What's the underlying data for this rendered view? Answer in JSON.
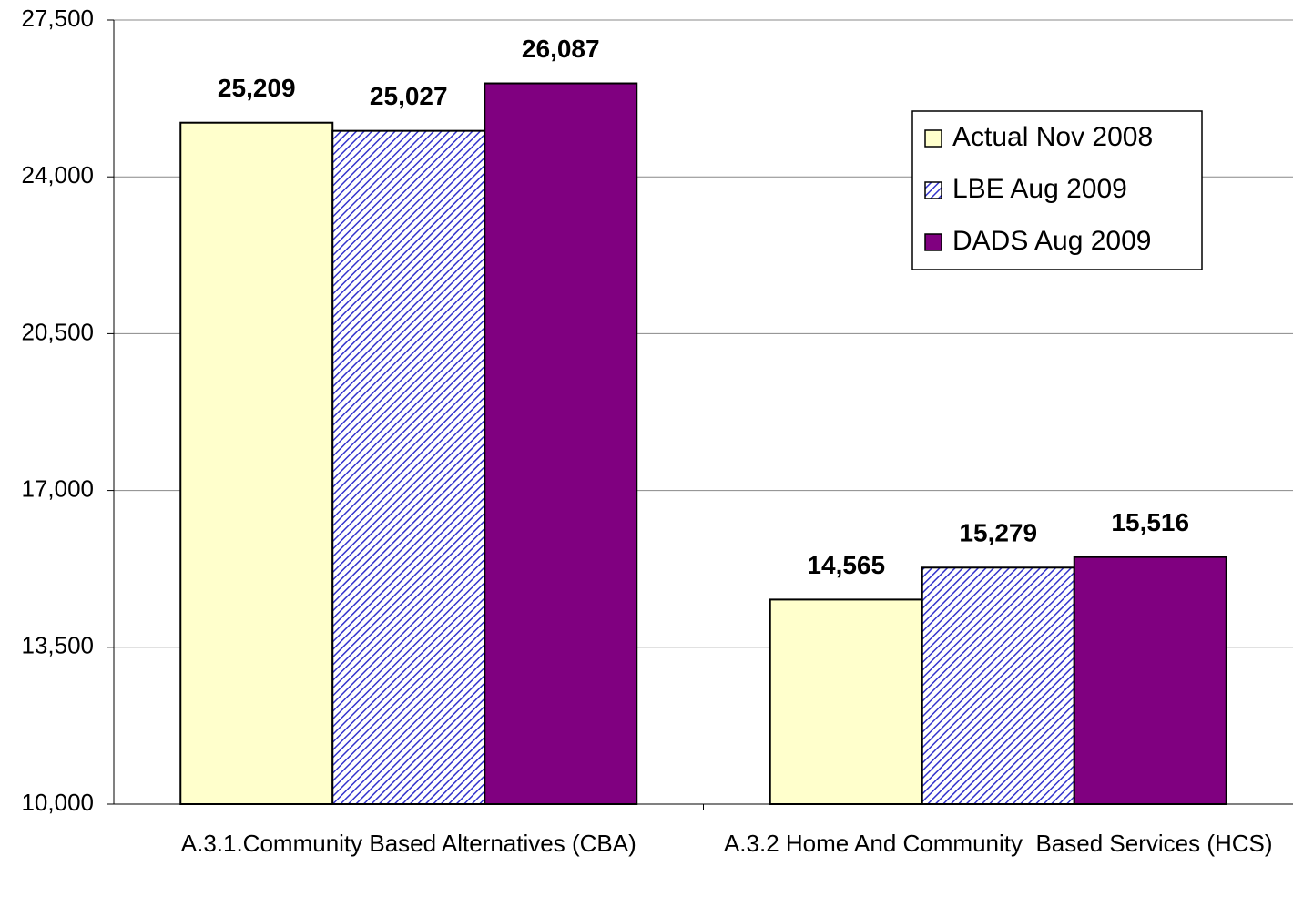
{
  "chart_data": {
    "type": "bar",
    "categories": [
      "A.3.1.Community Based Alternatives (CBA)",
      "A.3.2 Home And Community  Based Services (HCS)"
    ],
    "series": [
      {
        "name": "Actual Nov 2008",
        "color": "#ffffcc",
        "values": [
          25209,
          14565
        ],
        "value_labels": [
          "25,209",
          "14,565"
        ]
      },
      {
        "name": "LBE Aug 2009",
        "color": "#3333cc",
        "pattern": "hatch",
        "values": [
          25027,
          15279
        ],
        "value_labels": [
          "25,027",
          "15,279"
        ]
      },
      {
        "name": "DADS Aug 2009",
        "color": "#800080",
        "values": [
          26087,
          15516
        ],
        "value_labels": [
          "26,087",
          "15,516"
        ]
      }
    ],
    "ylim": [
      10000,
      27500
    ],
    "yticks": [
      {
        "value": 10000,
        "label": "10,000"
      },
      {
        "value": 13500,
        "label": "13,500"
      },
      {
        "value": 17000,
        "label": "17,000"
      },
      {
        "value": 20500,
        "label": "20,500"
      },
      {
        "value": 24000,
        "label": "24,000"
      },
      {
        "value": 27500,
        "label": "27,500"
      }
    ],
    "grid": true,
    "legend": "upper right"
  }
}
